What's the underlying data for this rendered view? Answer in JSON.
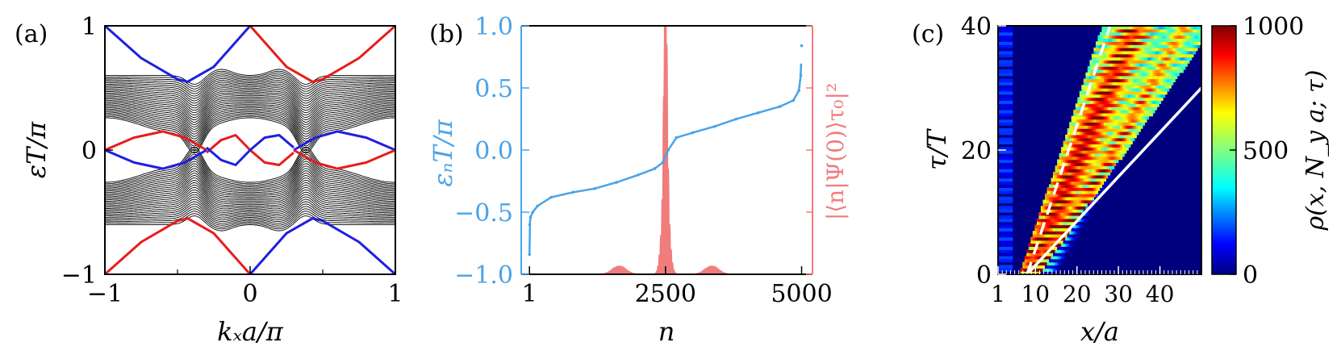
{
  "panels": {
    "a": {
      "label": "(a)",
      "xlabel": "kₓa/π",
      "ylabel": "εT/π"
    },
    "b": {
      "label": "(b)",
      "xlabel": "n",
      "ylabel_left": "εₙT/π",
      "ylabel_right": "|⟨n|Ψ(0)⟩τ₀|²"
    },
    "c": {
      "label": "(c)",
      "xlabel": "x/a",
      "ylabel": "τ/T",
      "colorbar_label": "ρ(x, N_y a; τ)"
    }
  },
  "chart_data": [
    {
      "type": "line",
      "panel": "a",
      "xlabel": "kₓa/π",
      "ylabel": "εT/π",
      "xlim": [
        -1,
        1
      ],
      "ylim": [
        -1,
        1
      ],
      "xticks": [
        "−1",
        "0",
        "1"
      ],
      "yticks": [
        "−1",
        "0",
        "1"
      ],
      "colors": {
        "bulk": "#000000",
        "edge_blue": "#1f1fe0",
        "edge_red": "#e81c1c"
      },
      "bulk_bands": {
        "count_per_side": 30,
        "inner_edge": 0.2,
        "outer_edge": 0.6
      },
      "series": [
        {
          "color": "blue",
          "x": [
            -1,
            -0.75,
            -0.5,
            -0.43,
            -0.25,
            0
          ],
          "y": [
            1,
            0.74,
            0.57,
            0.55,
            0.67,
            1
          ]
        },
        {
          "color": "red",
          "x": [
            0,
            0.25,
            0.43,
            0.5,
            0.75,
            1
          ],
          "y": [
            1,
            0.67,
            0.55,
            0.57,
            0.74,
            1
          ]
        },
        {
          "color": "red",
          "x": [
            -1,
            -0.75,
            -0.5,
            -0.43,
            -0.25,
            0
          ],
          "y": [
            -1,
            -0.74,
            -0.57,
            -0.55,
            -0.67,
            -1
          ]
        },
        {
          "color": "blue",
          "x": [
            0,
            0.25,
            0.43,
            0.5,
            0.75,
            1
          ],
          "y": [
            -1,
            -0.67,
            -0.55,
            -0.57,
            -0.74,
            -1
          ]
        },
        {
          "color": "red",
          "x": [
            -1,
            -0.8,
            -0.6,
            -0.45,
            -0.3
          ],
          "y": [
            0,
            0.1,
            0.15,
            0.1,
            0
          ]
        },
        {
          "color": "blue",
          "x": [
            -1,
            -0.8,
            -0.6,
            -0.45,
            -0.3
          ],
          "y": [
            0,
            -0.1,
            -0.15,
            -0.1,
            0
          ]
        },
        {
          "color": "blue",
          "x": [
            0.3,
            0.45,
            0.6,
            0.8,
            1
          ],
          "y": [
            0,
            0.1,
            0.15,
            0.1,
            0
          ]
        },
        {
          "color": "red",
          "x": [
            0.3,
            0.45,
            0.6,
            0.8,
            1
          ],
          "y": [
            0,
            -0.1,
            -0.15,
            -0.1,
            0
          ]
        },
        {
          "color": "red",
          "x": [
            -0.3,
            -0.2,
            -0.1,
            0,
            0.1,
            0.2,
            0.3
          ],
          "y": [
            -0.02,
            0.08,
            0.12,
            0,
            -0.1,
            -0.12,
            -0.02
          ]
        },
        {
          "color": "blue",
          "x": [
            -0.3,
            -0.2,
            -0.1,
            0,
            0.1,
            0.2,
            0.3
          ],
          "y": [
            0.02,
            -0.08,
            -0.12,
            0,
            0.1,
            0.12,
            0.02
          ]
        }
      ]
    },
    {
      "type": "scatter",
      "panel": "b",
      "xlabel": "n",
      "ylabel": "εₙT/π",
      "y2label": "|⟨n|Ψ(0)⟩τ₀|²",
      "xlim": [
        -150,
        5200
      ],
      "ylim": [
        -1,
        1
      ],
      "xticks": [
        "1",
        "2500",
        "5000"
      ],
      "yticks": [
        "−1.0",
        "−0.5",
        "0.0",
        "0.5",
        "1.0"
      ],
      "colors": {
        "spectrum": "#4aa3e8",
        "overlap": "#f07c7c"
      },
      "spectrum": {
        "n": [
          1,
          5,
          20,
          60,
          150,
          400,
          800,
          1200,
          1600,
          2000,
          2300,
          2450,
          2500,
          2550,
          2700,
          3000,
          3400,
          3800,
          4200,
          4600,
          4850,
          4950,
          4985,
          5000
        ],
        "eps": [
          -0.84,
          -0.6,
          -0.54,
          -0.5,
          -0.45,
          -0.38,
          -0.34,
          -0.31,
          -0.26,
          -0.2,
          -0.15,
          -0.1,
          -0.05,
          0.0,
          0.1,
          0.14,
          0.19,
          0.25,
          0.3,
          0.35,
          0.4,
          0.48,
          0.6,
          0.84
        ]
      },
      "overlap_peak": {
        "center": 2500,
        "relative_height": 1.0
      }
    },
    {
      "type": "heatmap",
      "panel": "c",
      "xlabel": "x/a",
      "ylabel": "τ/T",
      "xlim": [
        1,
        50
      ],
      "ylim": [
        0,
        40
      ],
      "xticks": [
        "1",
        "10",
        "20",
        "30",
        "40"
      ],
      "yticks": [
        "0",
        "20",
        "40"
      ],
      "colorbar": {
        "label": "ρ(x, N_y a; τ)",
        "range": [
          0,
          1000
        ],
        "ticks": [
          "0",
          "500",
          "1000"
        ],
        "colormap": "jet"
      },
      "dashed_line": {
        "x": [
          8,
          28
        ],
        "y": [
          0,
          40
        ]
      },
      "solid_line": {
        "x": [
          8,
          50
        ],
        "y": [
          0,
          30
        ]
      }
    }
  ]
}
